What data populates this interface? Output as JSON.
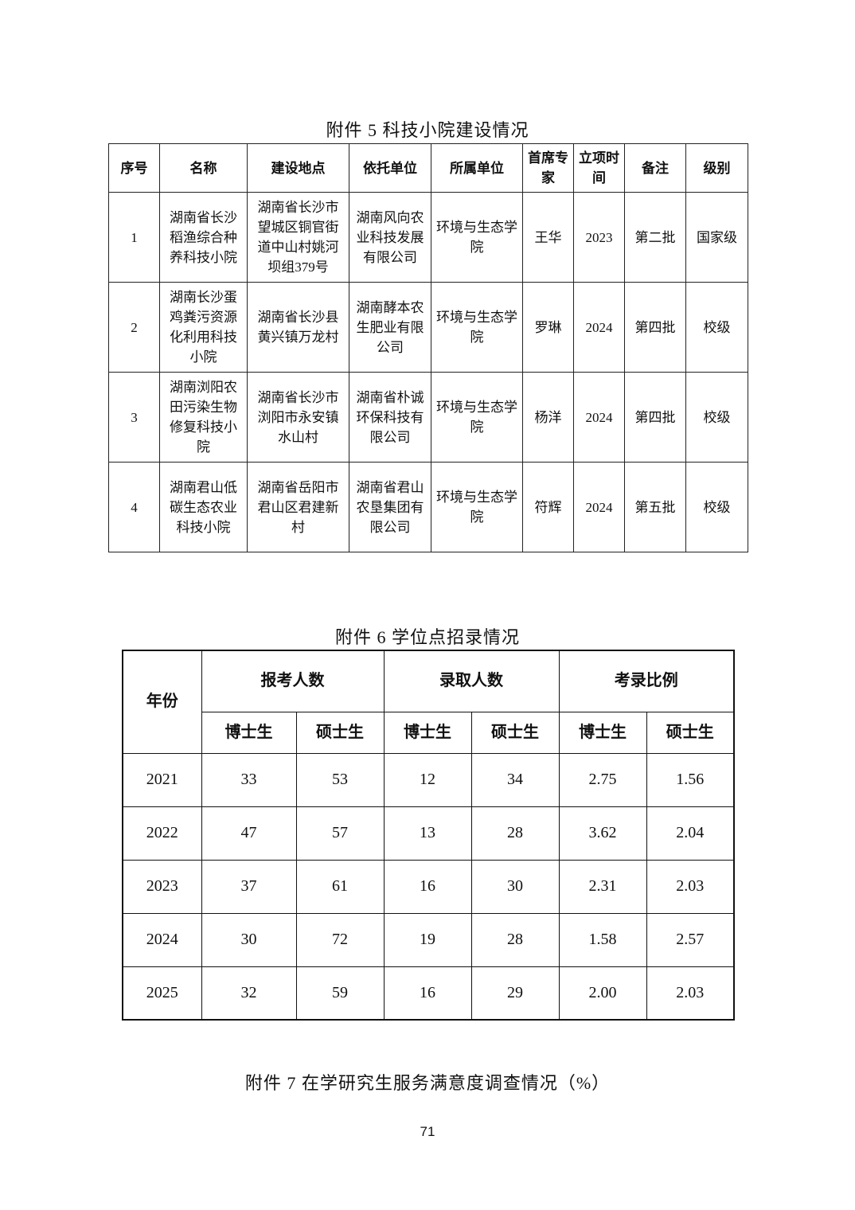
{
  "table5": {
    "title": "附件 5  科技小院建设情况",
    "headers": [
      "序号",
      "名称",
      "建设地点",
      "依托单位",
      "所属单位",
      "首席专家",
      "立项时间",
      "备注",
      "级别"
    ],
    "rows": [
      [
        "1",
        "湖南省长沙稻渔综合种养科技小院",
        "湖南省长沙市望城区铜官街道中山村姚河坝组379号",
        "湖南风向农业科技发展有限公司",
        "环境与生态学院",
        "王华",
        "2023",
        "第二批",
        "国家级"
      ],
      [
        "2",
        "湖南长沙蛋鸡粪污资源化利用科技小院",
        "湖南省长沙县黄兴镇万龙村",
        "湖南酵本农生肥业有限公司",
        "环境与生态学院",
        "罗琳",
        "2024",
        "第四批",
        "校级"
      ],
      [
        "3",
        "湖南浏阳农田污染生物修复科技小院",
        "湖南省长沙市浏阳市永安镇水山村",
        "湖南省朴诚环保科技有限公司",
        "环境与生态学院",
        "杨洋",
        "2024",
        "第四批",
        "校级"
      ],
      [
        "4",
        "湖南君山低碳生态农业科技小院",
        "湖南省岳阳市君山区君建新村",
        "湖南省君山农垦集团有限公司",
        "环境与生态学院",
        "符辉",
        "2024",
        "第五批",
        "校级"
      ]
    ]
  },
  "table6": {
    "title": "附件 6  学位点招录情况",
    "year_header": "年份",
    "group_headers": [
      "报考人数",
      "录取人数",
      "考录比例"
    ],
    "sub_headers": [
      "博士生",
      "硕士生",
      "博士生",
      "硕士生",
      "博士生",
      "硕士生"
    ],
    "rows": [
      [
        "2021",
        "33",
        "53",
        "12",
        "34",
        "2.75",
        "1.56"
      ],
      [
        "2022",
        "47",
        "57",
        "13",
        "28",
        "3.62",
        "2.04"
      ],
      [
        "2023",
        "37",
        "61",
        "16",
        "30",
        "2.31",
        "2.03"
      ],
      [
        "2024",
        "30",
        "72",
        "19",
        "28",
        "1.58",
        "2.57"
      ],
      [
        "2025",
        "32",
        "59",
        "16",
        "29",
        "2.00",
        "2.03"
      ]
    ]
  },
  "table7": {
    "title": "附件 7  在学研究生服务满意度调查情况（%）"
  },
  "page_number": "71"
}
